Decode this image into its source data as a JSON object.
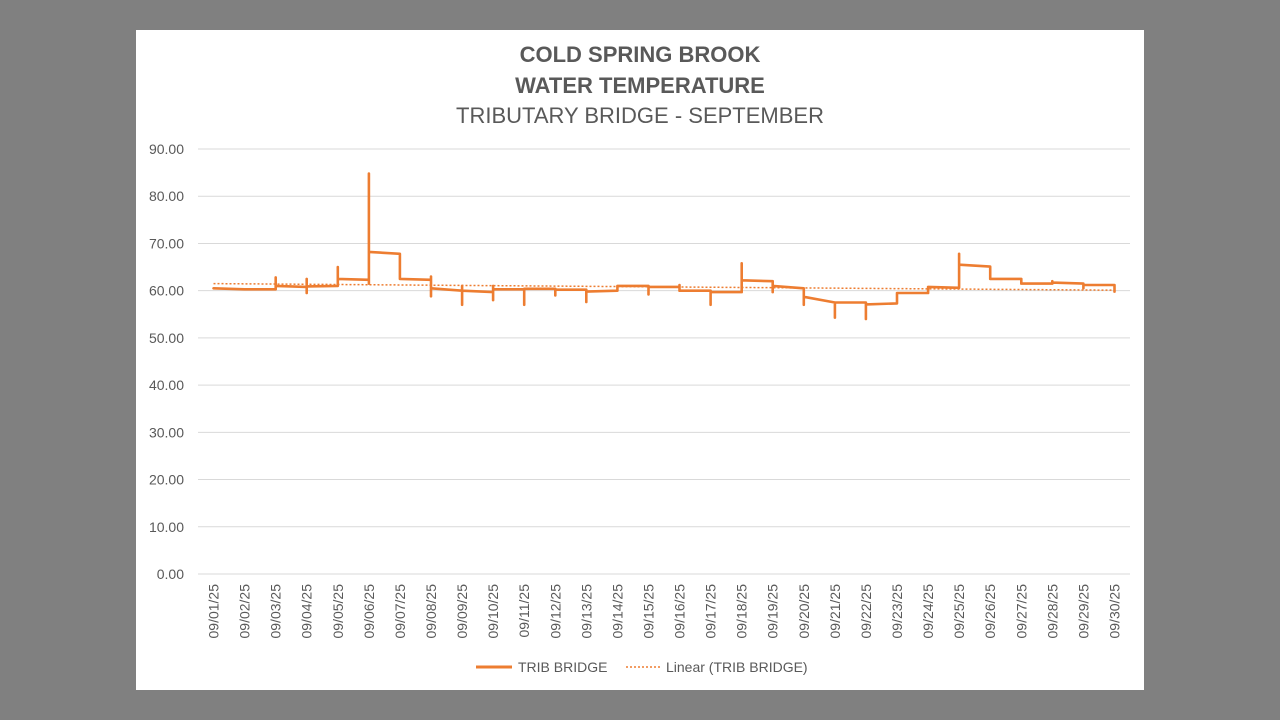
{
  "chart_data": {
    "type": "line",
    "title_lines": [
      "COLD SPRING BROOK",
      "WATER TEMPERATURE",
      "TRIBUTARY BRIDGE - SEPTEMBER"
    ],
    "xlabel": "",
    "ylabel": "",
    "ylim": [
      0,
      90
    ],
    "y_ticks": [
      "0.00",
      "10.00",
      "20.00",
      "30.00",
      "40.00",
      "50.00",
      "60.00",
      "70.00",
      "80.00",
      "90.00"
    ],
    "categories": [
      "09/01/25",
      "09/02/25",
      "09/03/25",
      "09/04/25",
      "09/05/25",
      "09/06/25",
      "09/07/25",
      "09/08/25",
      "09/09/25",
      "09/10/25",
      "09/11/25",
      "09/12/25",
      "09/13/25",
      "09/14/25",
      "09/15/25",
      "09/16/25",
      "09/17/25",
      "09/18/25",
      "09/19/25",
      "09/20/25",
      "09/21/25",
      "09/22/25",
      "09/23/25",
      "09/24/25",
      "09/25/25",
      "09/26/25",
      "09/27/25",
      "09/28/25",
      "09/29/25",
      "09/30/25"
    ],
    "grid": true,
    "legend_position": "bottom",
    "series": [
      {
        "name": "TRIB BRIDGE",
        "color": "#ED7D31",
        "style": "solid",
        "points": [
          [
            1,
            60.5
          ],
          [
            2,
            60.3
          ],
          [
            2,
            60.3
          ],
          [
            3,
            60.3
          ],
          [
            3,
            62.8
          ],
          [
            3,
            61
          ],
          [
            4,
            60.8
          ],
          [
            4,
            62.5
          ],
          [
            4,
            59.5
          ],
          [
            4,
            60.9
          ],
          [
            5,
            61
          ],
          [
            5,
            65
          ],
          [
            5,
            62.5
          ],
          [
            6,
            62.3
          ],
          [
            6,
            84.8
          ],
          [
            6,
            61.5
          ],
          [
            6,
            68.2
          ],
          [
            7,
            67.8
          ],
          [
            7,
            62.5
          ],
          [
            8,
            62.3
          ],
          [
            8,
            63
          ],
          [
            8,
            58.8
          ],
          [
            8,
            60.5
          ],
          [
            9,
            60
          ],
          [
            9,
            61
          ],
          [
            9,
            57
          ],
          [
            9,
            60
          ],
          [
            10,
            59.7
          ],
          [
            10,
            61
          ],
          [
            10,
            58
          ],
          [
            10,
            60.3
          ],
          [
            11,
            60.3
          ],
          [
            11,
            57
          ],
          [
            11,
            60.4
          ],
          [
            12,
            60.4
          ],
          [
            12,
            59
          ],
          [
            12,
            60.2
          ],
          [
            13,
            60.2
          ],
          [
            13,
            57.6
          ],
          [
            13,
            59.8
          ],
          [
            14,
            60
          ],
          [
            14,
            61
          ],
          [
            15,
            61
          ],
          [
            15,
            59.2
          ],
          [
            15,
            60.8
          ],
          [
            16,
            60.8
          ],
          [
            16,
            61.2
          ],
          [
            16,
            60
          ],
          [
            17,
            60
          ],
          [
            17,
            57
          ],
          [
            17,
            59.7
          ],
          [
            18,
            59.7
          ],
          [
            18,
            65.8
          ],
          [
            18,
            62.2
          ],
          [
            19,
            62
          ],
          [
            19,
            59.7
          ],
          [
            19,
            61
          ],
          [
            20,
            60.5
          ],
          [
            20,
            57
          ],
          [
            20,
            58.7
          ],
          [
            21,
            57.5
          ],
          [
            21,
            54.3
          ],
          [
            21,
            57.5
          ],
          [
            22,
            57.5
          ],
          [
            22,
            54
          ],
          [
            22,
            57.1
          ],
          [
            23,
            57.3
          ],
          [
            23,
            59.5
          ],
          [
            24,
            59.5
          ],
          [
            24,
            60.8
          ],
          [
            25,
            60.6
          ],
          [
            25,
            67.8
          ],
          [
            25,
            65.5
          ],
          [
            26,
            65.1
          ],
          [
            26,
            62.5
          ],
          [
            27,
            62.5
          ],
          [
            27,
            61.5
          ],
          [
            28,
            61.5
          ],
          [
            28,
            62
          ],
          [
            28,
            61.7
          ],
          [
            29,
            61.5
          ],
          [
            29,
            60.5
          ],
          [
            29,
            61.2
          ],
          [
            30,
            61.2
          ],
          [
            30,
            59.8
          ]
        ]
      },
      {
        "name": "Linear (TRIB BRIDGE)",
        "color": "#ED7D31",
        "style": "dotted",
        "points": [
          [
            1,
            61.5
          ],
          [
            30,
            60.1
          ]
        ]
      }
    ]
  }
}
